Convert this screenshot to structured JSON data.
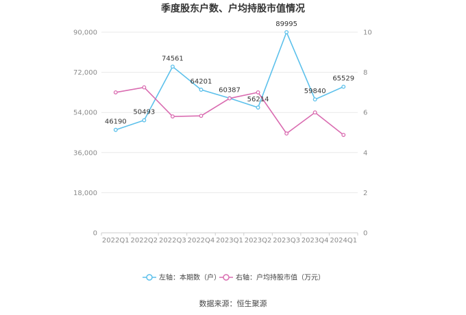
{
  "title": "季度股东户数、户均持股市值情况",
  "source": "数据来源：恒生聚源",
  "chart_data": {
    "type": "line",
    "categories": [
      "2022Q1",
      "2022Q2",
      "2022Q3",
      "2022Q4",
      "2023Q1",
      "2023Q2",
      "2023Q3",
      "2023Q4",
      "2024Q1"
    ],
    "left_axis": {
      "ticks": [
        "0",
        "18,000",
        "36,000",
        "54,000",
        "72,000",
        "90,000"
      ],
      "ylim": [
        0,
        90000
      ]
    },
    "right_axis": {
      "ticks": [
        "0",
        "2",
        "4",
        "6",
        "8",
        "10"
      ],
      "ylim": [
        0,
        10
      ]
    },
    "series": [
      {
        "name": "左轴：本期数（户）",
        "axis": "left",
        "color": "#5bc0eb",
        "values": [
          46190,
          50493,
          74561,
          64201,
          60387,
          56214,
          89995,
          59840,
          65529
        ],
        "labels": [
          "46190",
          "50493",
          "74561",
          "64201",
          "60387",
          "56214",
          "89995",
          "59840",
          "65529"
        ]
      },
      {
        "name": "右轴：户均持股市值（万元）",
        "axis": "right",
        "color": "#d96bb0",
        "values": [
          7.0,
          7.25,
          5.8,
          5.83,
          6.7,
          7.0,
          4.95,
          6.0,
          4.88
        ]
      }
    ],
    "grid": true,
    "legend": "bottom"
  }
}
